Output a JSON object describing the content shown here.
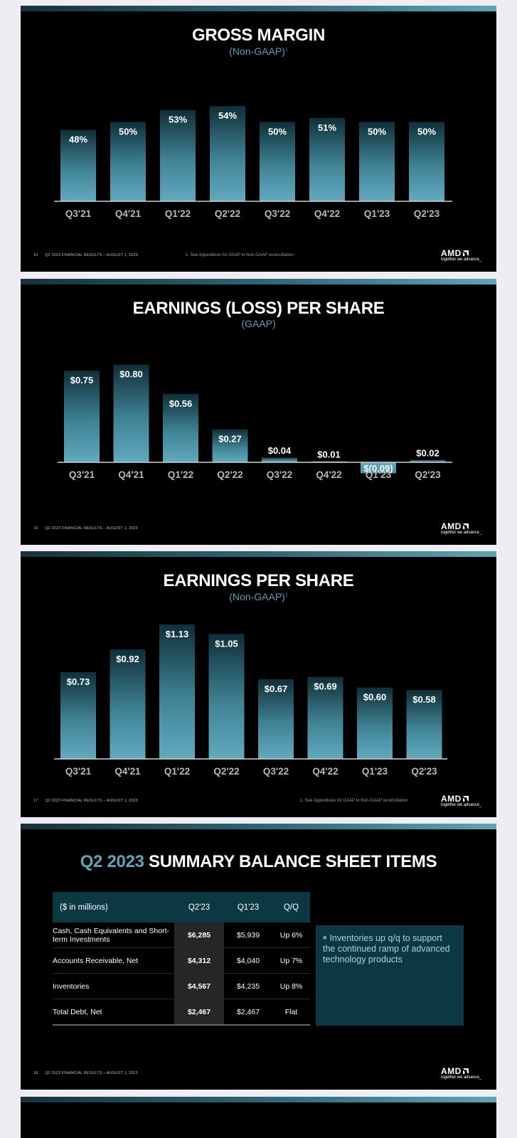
{
  "slides": [
    {
      "title": "GROSS MARGIN",
      "subtitle": "(Non-GAAP)",
      "subtitle_sup": "1",
      "page_number": "15",
      "footer": "Q2 2023 FINANCIAL RESULTS – AUGUST 1, 2023",
      "footnote": "1.  See Appendices for GAAP to Non-GAAP reconciliation."
    },
    {
      "title": "EARNINGS (LOSS) PER SHARE",
      "subtitle": "(GAAP)",
      "subtitle_sup": "",
      "page_number": "16",
      "footer": "Q2 2023 FINANCIAL RESULTS – AUGUST 1, 2023",
      "footnote": ""
    },
    {
      "title": "EARNINGS PER SHARE",
      "subtitle": "(Non-GAAP)",
      "subtitle_sup": "1",
      "page_number": "17",
      "footer": "Q2 2023 FINANCIAL RESULTS – AUGUST 1, 2023",
      "footnote": "1. See Appendices for GAAP to Non-GAAP reconciliation"
    },
    {
      "title_highlight": "Q2 2023",
      "title_rest": " SUMMARY BALANCE SHEET ITEMS",
      "page_number": "18",
      "footer": "Q2 2023 FINANCIAL RESULTS – AUGUST 1, 2023"
    }
  ],
  "logo": {
    "brand": "AMD",
    "tagline": "together we advance_"
  },
  "chart_data": [
    {
      "type": "bar",
      "title": "GROSS MARGIN",
      "categories": [
        "Q3'21",
        "Q4'21",
        "Q1'22",
        "Q2'22",
        "Q3'22",
        "Q4'22",
        "Q1'23",
        "Q2'23"
      ],
      "values": [
        48,
        50,
        53,
        54,
        50,
        51,
        50,
        50
      ],
      "labels": [
        "48%",
        "50%",
        "53%",
        "54%",
        "50%",
        "51%",
        "50%",
        "50%"
      ],
      "unit": "%",
      "ylim": [
        30,
        56
      ]
    },
    {
      "type": "bar",
      "title": "EARNINGS (LOSS) PER SHARE",
      "categories": [
        "Q3'21",
        "Q4'21",
        "Q1'22",
        "Q2'22",
        "Q3'22",
        "Q4'22",
        "Q1'23",
        "Q2'23"
      ],
      "values": [
        0.75,
        0.8,
        0.56,
        0.27,
        0.04,
        0.01,
        -0.09,
        0.02
      ],
      "labels": [
        "$0.75",
        "$0.80",
        "$0.56",
        "$0.27",
        "$0.04",
        "$0.01",
        "$(0.09)",
        "$0.02"
      ],
      "unit": "$",
      "ylim": [
        -0.1,
        0.85
      ]
    },
    {
      "type": "bar",
      "title": "EARNINGS PER SHARE",
      "categories": [
        "Q3'21",
        "Q4'21",
        "Q1'22",
        "Q2'22",
        "Q3'22",
        "Q4'22",
        "Q1'23",
        "Q2'23"
      ],
      "values": [
        0.73,
        0.92,
        1.13,
        1.05,
        0.67,
        0.69,
        0.6,
        0.58
      ],
      "labels": [
        "$0.73",
        "$0.92",
        "$1.13",
        "$1.05",
        "$0.67",
        "$0.69",
        "$0.60",
        "$0.58"
      ],
      "unit": "$",
      "ylim": [
        0,
        1.16
      ]
    },
    {
      "type": "table",
      "title": "Q2 2023 SUMMARY BALANCE SHEET ITEMS",
      "columns": [
        "($ in millions)",
        "Q2'23",
        "Q1'23",
        "Q/Q"
      ],
      "rows": [
        [
          "Cash, Cash Equivalents and Short-term Investments",
          "$6,285",
          "$5,939",
          "Up 6%"
        ],
        [
          "Accounts Receivable, Net",
          "$4,312",
          "$4,040",
          "Up 7%"
        ],
        [
          "Inventories",
          "$4,567",
          "$4,235",
          "Up 8%"
        ],
        [
          "Total Debt, Net",
          "$2,467",
          "$2,467",
          "Flat"
        ]
      ]
    }
  ],
  "callout": "Inventories up q/q to support the continued ramp of advanced technology products",
  "colors": {
    "bar_top": "#0f2f38",
    "bar_bottom": "#62aabf",
    "accent": "#5fa5b4",
    "table_header": "#0c3844"
  }
}
